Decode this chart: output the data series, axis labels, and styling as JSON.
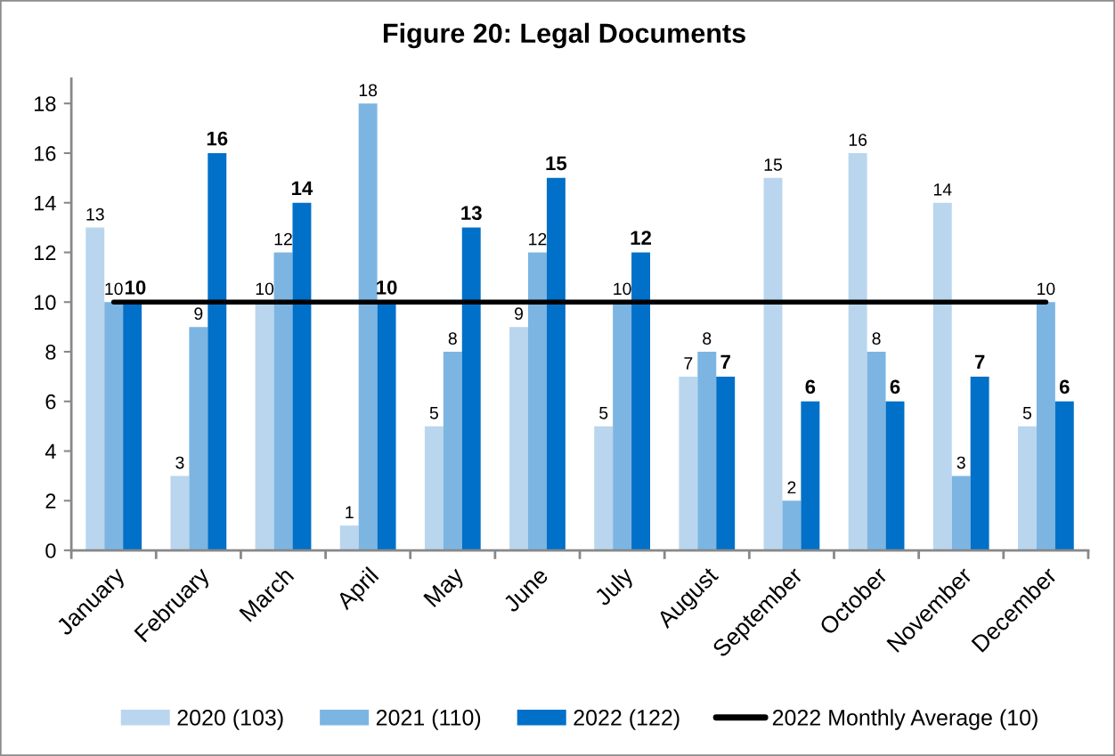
{
  "chart_data": {
    "type": "bar",
    "title": "Figure 20: Legal Documents",
    "categories": [
      "January",
      "February",
      "March",
      "April",
      "May",
      "June",
      "July",
      "August",
      "September",
      "October",
      "November",
      "December"
    ],
    "series": [
      {
        "name": "2020 (103)",
        "color": "#b9d6ee",
        "values": [
          13,
          3,
          10,
          1,
          5,
          9,
          5,
          7,
          15,
          16,
          14,
          5
        ],
        "value_labels": [
          "13",
          "3",
          "10",
          "1",
          "5",
          "9",
          "5",
          "7",
          "15",
          "16",
          "14",
          "5"
        ]
      },
      {
        "name": "2021 (110)",
        "color": "#7cb5e2",
        "values": [
          10,
          9,
          12,
          18,
          8,
          12,
          10,
          8,
          2,
          8,
          3,
          10
        ],
        "value_labels": [
          "10",
          "9",
          "12",
          "18",
          "8",
          "12",
          "10",
          "8",
          "2",
          "8",
          "3",
          "10"
        ]
      },
      {
        "name": "2022 (122)",
        "color": "#0070c8",
        "values": [
          10,
          16,
          14,
          10,
          13,
          15,
          12,
          7,
          6,
          6,
          7,
          6
        ],
        "value_labels": [
          "10",
          "16",
          "14",
          "10",
          "13",
          "15",
          "12",
          "7",
          "6",
          "6",
          "7",
          "6"
        ]
      },
      {
        "name": "2022 Monthly Average (10)",
        "type": "line",
        "color": "#000000",
        "values": [
          10,
          10,
          10,
          10,
          10,
          10,
          10,
          10,
          10,
          10,
          10,
          10
        ]
      }
    ],
    "ylim": [
      0,
      19
    ],
    "yticks": [
      0,
      2,
      4,
      6,
      8,
      10,
      12,
      14,
      16,
      18
    ],
    "legend": "bottom"
  }
}
